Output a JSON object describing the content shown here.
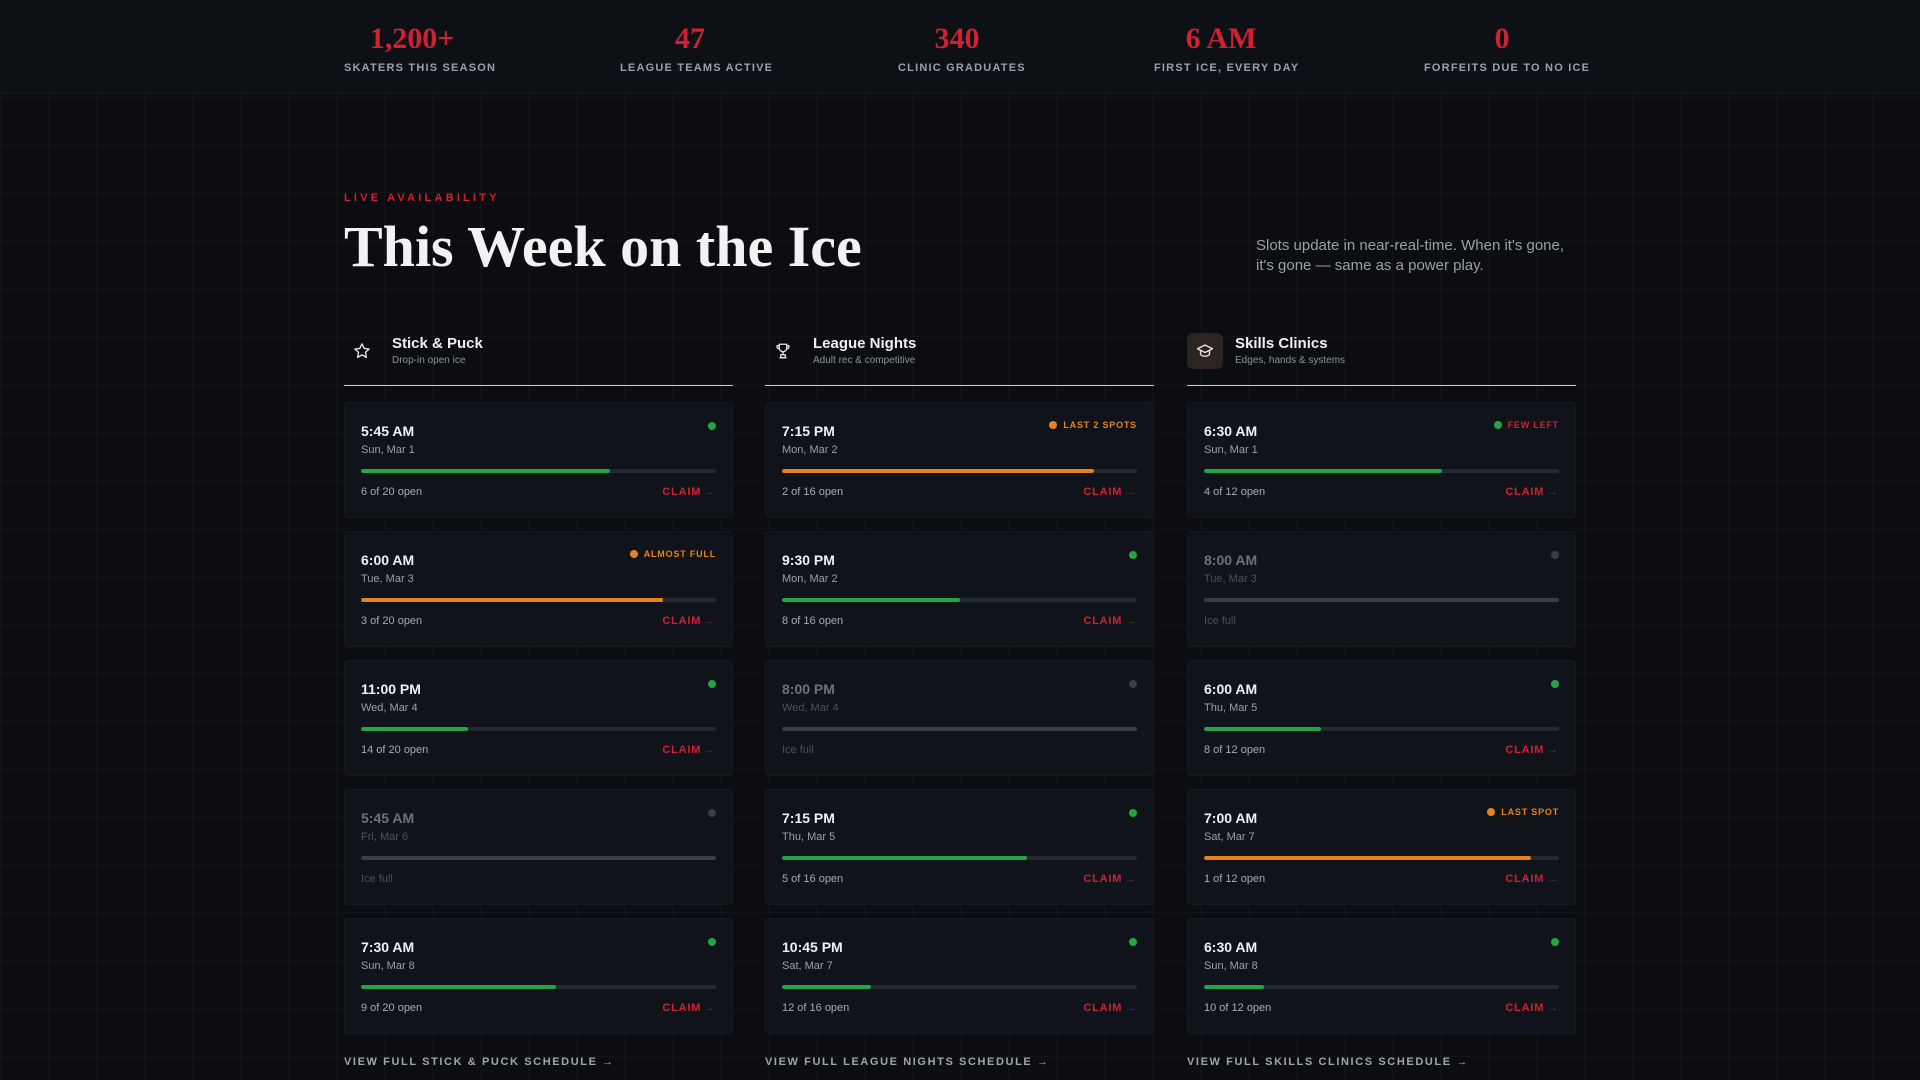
{
  "colors": {
    "accent": "#d12031",
    "green": "#22a447",
    "orange": "#e8821e",
    "muted": "#3a3f47"
  },
  "stats": [
    {
      "value": "1,200+",
      "label": "SKATERS THIS SEASON"
    },
    {
      "value": "47",
      "label": "LEAGUE TEAMS ACTIVE"
    },
    {
      "value": "340",
      "label": "CLINIC GRADUATES"
    },
    {
      "value": "6 AM",
      "label": "FIRST ICE, EVERY DAY"
    },
    {
      "value": "0",
      "label": "FORFEITS DUE TO NO ICE"
    }
  ],
  "section": {
    "eyebrow": "LIVE AVAILABILITY",
    "title": "This Week on the Ice",
    "description": "Slots update in near-real-time. When it's gone, it's gone — same as a power play."
  },
  "columns": [
    {
      "name": "Stick & Puck",
      "subtitle": "Drop-in open ice",
      "icon": "star-icon",
      "view_all": "VIEW FULL STICK & PUCK SCHEDULE →",
      "slots": [
        {
          "time": "5:45 AM",
          "date": "Sun, Mar 1",
          "status_text": "6 of 20 open",
          "fill": 0.7,
          "state": "open",
          "badge": "",
          "action": "CLAIM"
        },
        {
          "time": "6:00 AM",
          "date": "Tue, Mar 3",
          "status_text": "3 of 20 open",
          "fill": 0.85,
          "state": "warn",
          "badge": "ALMOST FULL",
          "action": "CLAIM"
        },
        {
          "time": "11:00 PM",
          "date": "Wed, Mar 4",
          "status_text": "14 of 20 open",
          "fill": 0.3,
          "state": "open",
          "badge": "",
          "action": "CLAIM"
        },
        {
          "time": "5:45 AM",
          "date": "Fri, Mar 6",
          "status_text": "Ice full",
          "fill": 1.0,
          "state": "full",
          "badge": "",
          "action": ""
        },
        {
          "time": "7:30 AM",
          "date": "Sun, Mar 8",
          "status_text": "9 of 20 open",
          "fill": 0.55,
          "state": "open",
          "badge": "",
          "action": "CLAIM"
        }
      ]
    },
    {
      "name": "League Nights",
      "subtitle": "Adult rec & competitive",
      "icon": "trophy-icon",
      "view_all": "VIEW FULL LEAGUE NIGHTS SCHEDULE →",
      "slots": [
        {
          "time": "7:15 PM",
          "date": "Mon, Mar 2",
          "status_text": "2 of 16 open",
          "fill": 0.88,
          "state": "warn",
          "badge": "LAST 2 SPOTS",
          "action": "CLAIM"
        },
        {
          "time": "9:30 PM",
          "date": "Mon, Mar 2",
          "status_text": "8 of 16 open",
          "fill": 0.5,
          "state": "open",
          "badge": "",
          "action": "CLAIM"
        },
        {
          "time": "8:00 PM",
          "date": "Wed, Mar 4",
          "status_text": "Ice full",
          "fill": 1.0,
          "state": "full",
          "badge": "",
          "action": ""
        },
        {
          "time": "7:15 PM",
          "date": "Thu, Mar 5",
          "status_text": "5 of 16 open",
          "fill": 0.69,
          "state": "open",
          "badge": "",
          "action": "CLAIM"
        },
        {
          "time": "10:45 PM",
          "date": "Sat, Mar 7",
          "status_text": "12 of 16 open",
          "fill": 0.25,
          "state": "open",
          "badge": "",
          "action": "CLAIM"
        }
      ]
    },
    {
      "name": "Skills Clinics",
      "subtitle": "Edges, hands & systems",
      "icon": "graduation-cap-icon",
      "view_all": "VIEW FULL SKILLS CLINICS SCHEDULE →",
      "slots": [
        {
          "time": "6:30 AM",
          "date": "Sun, Mar 1",
          "status_text": "4 of 12 open",
          "fill": 0.67,
          "state": "open",
          "badge": "FEW LEFT",
          "badge_tone": "green-dot-red-text",
          "action": "CLAIM"
        },
        {
          "time": "8:00 AM",
          "date": "Tue, Mar 3",
          "status_text": "Ice full",
          "fill": 1.0,
          "state": "full",
          "badge": "",
          "action": ""
        },
        {
          "time": "6:00 AM",
          "date": "Thu, Mar 5",
          "status_text": "8 of 12 open",
          "fill": 0.33,
          "state": "open",
          "badge": "",
          "action": "CLAIM"
        },
        {
          "time": "7:00 AM",
          "date": "Sat, Mar 7",
          "status_text": "1 of 12 open",
          "fill": 0.92,
          "state": "warn",
          "badge": "LAST SPOT",
          "action": "CLAIM"
        },
        {
          "time": "6:30 AM",
          "date": "Sun, Mar 8",
          "status_text": "10 of 12 open",
          "fill": 0.17,
          "state": "open",
          "badge": "",
          "action": "CLAIM"
        }
      ]
    }
  ]
}
